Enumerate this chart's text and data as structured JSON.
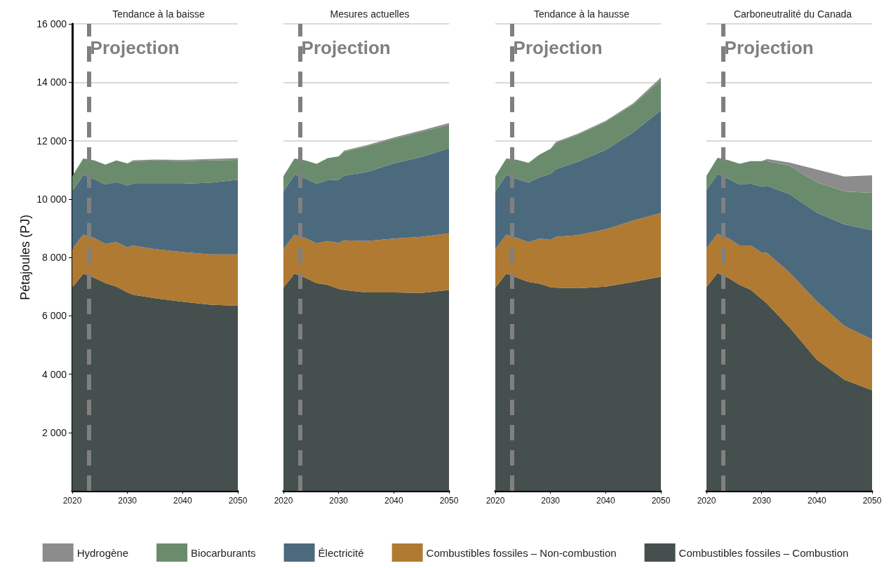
{
  "chart_data": [
    {
      "type": "area",
      "title": "Tendance à la baisse",
      "ylabel": "Pétajoules (PJ)",
      "stacked": true,
      "legend": "bottom",
      "grid": "y",
      "x": [
        2020,
        2022,
        2024,
        2026,
        2028,
        2030,
        2031,
        2035,
        2040,
        2045,
        2050
      ],
      "xlim": [
        2020,
        2050
      ],
      "xticks": [
        2020,
        2030,
        2040,
        2050
      ],
      "ylim": [
        0,
        16000
      ],
      "yticks": [
        {
          "value": 2000,
          "label": "2 000"
        },
        {
          "value": 4000,
          "label": "4 000"
        },
        {
          "value": 6000,
          "label": "6 000"
        },
        {
          "value": 8000,
          "label": "8 000"
        },
        {
          "value": 10000,
          "label": "10 000"
        },
        {
          "value": 12000,
          "label": "12 000"
        },
        {
          "value": 14000,
          "label": "14 000"
        },
        {
          "value": 16000,
          "label": "16 000"
        }
      ],
      "ref_lines": [
        {
          "axis": "x",
          "value": 2023,
          "label": "Projection",
          "color": "#808080",
          "line_style": "dashed"
        }
      ],
      "series": [
        {
          "name": "Combustibles fossiles – Combustion",
          "color": "#454f4d",
          "values": [
            6960,
            7440,
            7300,
            7120,
            7000,
            6800,
            6720,
            6600,
            6480,
            6380,
            6340
          ]
        },
        {
          "name": "Combustibles fossiles – Non-combustion",
          "color": "#b07a32",
          "values": [
            1320,
            1340,
            1360,
            1340,
            1520,
            1540,
            1680,
            1680,
            1700,
            1720,
            1760
          ]
        },
        {
          "name": "Électricité",
          "color": "#4c6a7e",
          "values": [
            1980,
            2040,
            2020,
            2040,
            2060,
            2120,
            2120,
            2240,
            2340,
            2460,
            2560
          ]
        },
        {
          "name": "Biocarburants",
          "color": "#6a8c6c",
          "values": [
            520,
            570,
            640,
            680,
            740,
            760,
            780,
            800,
            780,
            760,
            680
          ]
        },
        {
          "name": "Hydrogène",
          "color": "#8c8c8c",
          "values": [
            0,
            0,
            0,
            0,
            0,
            0,
            30,
            30,
            40,
            50,
            60
          ]
        }
      ]
    },
    {
      "type": "area",
      "title": "Mesures actuelles",
      "stacked": true,
      "grid": "y",
      "tick_labels": "x",
      "x": [
        2020,
        2022,
        2024,
        2026,
        2028,
        2030,
        2031,
        2035,
        2040,
        2045,
        2050
      ],
      "xlim": [
        2020,
        2050
      ],
      "xticks": [
        2020,
        2030,
        2040,
        2050
      ],
      "ylim": [
        0,
        16000
      ],
      "yticks": [
        {
          "value": 2000,
          "label": null
        },
        {
          "value": 4000,
          "label": null
        },
        {
          "value": 6000,
          "label": null
        },
        {
          "value": 8000,
          "label": null
        },
        {
          "value": 10000,
          "label": null
        },
        {
          "value": 12000,
          "label": null
        },
        {
          "value": 14000,
          "label": null
        },
        {
          "value": 16000,
          "label": null
        }
      ],
      "ref_lines": [
        {
          "axis": "x",
          "value": 2023,
          "label": "Projection",
          "color": "#808080",
          "line_style": "dashed"
        }
      ],
      "series": [
        {
          "color": "#454f4d",
          "values": [
            6960,
            7440,
            7300,
            7120,
            7060,
            6920,
            6880,
            6800,
            6800,
            6780,
            6880
          ]
        },
        {
          "color": "#b07a32",
          "values": [
            1320,
            1340,
            1360,
            1360,
            1500,
            1580,
            1700,
            1760,
            1840,
            1920,
            1940
          ]
        },
        {
          "color": "#4c6a7e",
          "values": [
            1980,
            2040,
            2040,
            2040,
            2080,
            2160,
            2220,
            2360,
            2580,
            2740,
            2920
          ]
        },
        {
          "color": "#6a8c6c",
          "values": [
            520,
            570,
            620,
            680,
            760,
            800,
            820,
            880,
            840,
            860,
            800
          ]
        },
        {
          "color": "#8c8c8c",
          "values": [
            0,
            0,
            0,
            0,
            0,
            0,
            40,
            40,
            50,
            50,
            60
          ]
        }
      ]
    },
    {
      "type": "area",
      "title": "Tendance à la hausse",
      "stacked": true,
      "grid": "y",
      "tick_labels": "x",
      "x": [
        2020,
        2022,
        2024,
        2026,
        2028,
        2030,
        2031,
        2035,
        2040,
        2045,
        2050
      ],
      "xlim": [
        2020,
        2050
      ],
      "xticks": [
        2020,
        2030,
        2040,
        2050
      ],
      "ylim": [
        0,
        16000
      ],
      "yticks": [
        {
          "value": 2000,
          "label": null
        },
        {
          "value": 4000,
          "label": null
        },
        {
          "value": 6000,
          "label": null
        },
        {
          "value": 8000,
          "label": null
        },
        {
          "value": 10000,
          "label": null
        },
        {
          "value": 12000,
          "label": null
        },
        {
          "value": 14000,
          "label": null
        },
        {
          "value": 16000,
          "label": null
        }
      ],
      "ref_lines": [
        {
          "axis": "x",
          "value": 2023,
          "label": "Projection",
          "color": "#808080",
          "line_style": "dashed"
        }
      ],
      "series": [
        {
          "color": "#454f4d",
          "values": [
            6960,
            7440,
            7300,
            7160,
            7100,
            6980,
            6960,
            6940,
            7000,
            7160,
            7340
          ]
        },
        {
          "color": "#b07a32",
          "values": [
            1320,
            1340,
            1360,
            1360,
            1540,
            1620,
            1740,
            1820,
            1960,
            2100,
            2180
          ]
        },
        {
          "color": "#4c6a7e",
          "values": [
            1980,
            2040,
            2020,
            2040,
            2100,
            2260,
            2320,
            2520,
            2720,
            3020,
            3520
          ]
        },
        {
          "color": "#6a8c6c",
          "values": [
            520,
            570,
            660,
            680,
            780,
            860,
            900,
            920,
            960,
            960,
            1040
          ]
        },
        {
          "color": "#8c8c8c",
          "values": [
            0,
            0,
            0,
            0,
            0,
            0,
            40,
            40,
            40,
            40,
            80
          ]
        }
      ]
    },
    {
      "type": "area",
      "title": "Carboneutralité du Canada",
      "stacked": true,
      "grid": "y",
      "tick_labels": "x",
      "x": [
        2020,
        2022,
        2024,
        2026,
        2028,
        2030,
        2031,
        2035,
        2040,
        2045,
        2050
      ],
      "xlim": [
        2020,
        2050
      ],
      "xticks": [
        2020,
        2030,
        2040,
        2050
      ],
      "ylim": [
        0,
        16000
      ],
      "yticks": [
        {
          "value": 2000,
          "label": null
        },
        {
          "value": 4000,
          "label": null
        },
        {
          "value": 6000,
          "label": null
        },
        {
          "value": 8000,
          "label": null
        },
        {
          "value": 10000,
          "label": null
        },
        {
          "value": 12000,
          "label": null
        },
        {
          "value": 14000,
          "label": null
        },
        {
          "value": 16000,
          "label": null
        }
      ],
      "ref_lines": [
        {
          "axis": "x",
          "value": 2023,
          "label": "Projection",
          "color": "#808080",
          "line_style": "dashed"
        }
      ],
      "series": [
        {
          "color": "#454f4d",
          "values": [
            6980,
            7460,
            7290,
            7060,
            6890,
            6570,
            6410,
            5610,
            4490,
            3810,
            3450
          ]
        },
        {
          "color": "#b07a32",
          "values": [
            1330,
            1350,
            1360,
            1350,
            1520,
            1600,
            1740,
            1880,
            2000,
            1840,
            1740
          ]
        },
        {
          "color": "#4c6a7e",
          "values": [
            2000,
            2040,
            2040,
            2080,
            2120,
            2250,
            2300,
            2680,
            3040,
            3480,
            3740
          ]
        },
        {
          "color": "#6a8c6c",
          "values": [
            480,
            560,
            640,
            720,
            770,
            870,
            840,
            970,
            1040,
            1130,
            1280
          ]
        },
        {
          "color": "#8c8c8c",
          "values": [
            0,
            0,
            0,
            0,
            0,
            10,
            80,
            110,
            440,
            510,
            600
          ]
        }
      ]
    }
  ]
}
